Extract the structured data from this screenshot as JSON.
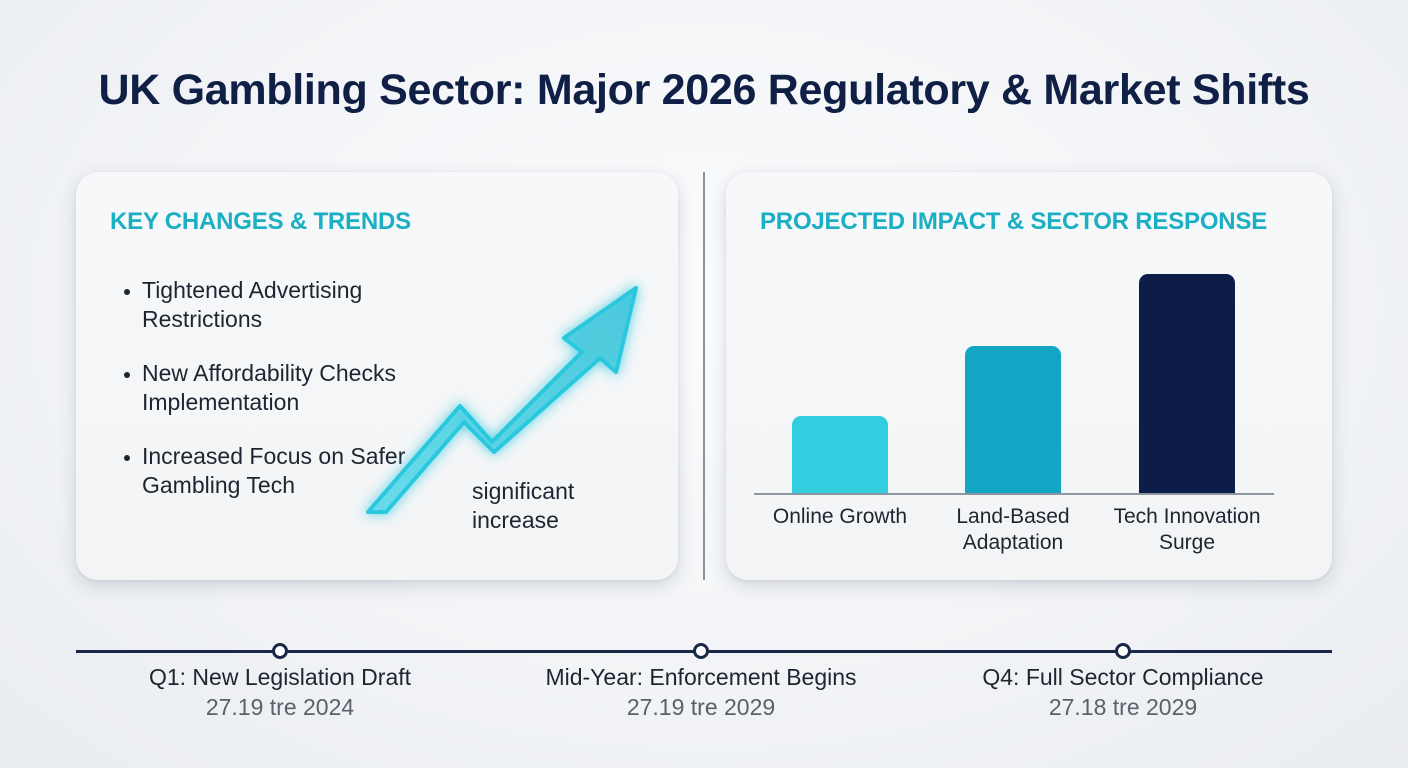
{
  "title": "UK Gambling Sector: Major 2026 Regulatory & Market Shifts",
  "left_panel": {
    "heading": "KEY CHANGES & TRENDS",
    "bullets": [
      "Tightened Advertising Restrictions",
      "New Affordability Checks Implementation",
      "Increased Focus on Safer Gambling Tech"
    ],
    "arrow_label": "significant increase",
    "arrow_icon": "trend-up-arrow-icon",
    "arrow_color": "#26c6dc"
  },
  "right_panel": {
    "heading": "PROJECTED IMPACT & SECTOR RESPONSE"
  },
  "chart_data": {
    "type": "bar",
    "categories": [
      "Online Growth",
      "Land-Based Adaptation",
      "Tech Innovation Surge"
    ],
    "values": [
      35,
      67,
      100
    ],
    "colors": [
      "#33cde0",
      "#13a6c4",
      "#0c1d4a"
    ],
    "ylim": [
      0,
      100
    ],
    "grid": false,
    "legend": "none"
  },
  "timeline": [
    {
      "title": "Q1: New Legislation Draft",
      "date": "27.19 tre 2024"
    },
    {
      "title": "Mid-Year: Enforcement Begins",
      "date": "27.19 tre 2029"
    },
    {
      "title": "Q4: Full Sector Compliance",
      "date": "27.18 tre 2029"
    }
  ],
  "colors": {
    "title": "#0f1f45",
    "accent": "#1aafc2",
    "timeline": "#1a2848"
  }
}
